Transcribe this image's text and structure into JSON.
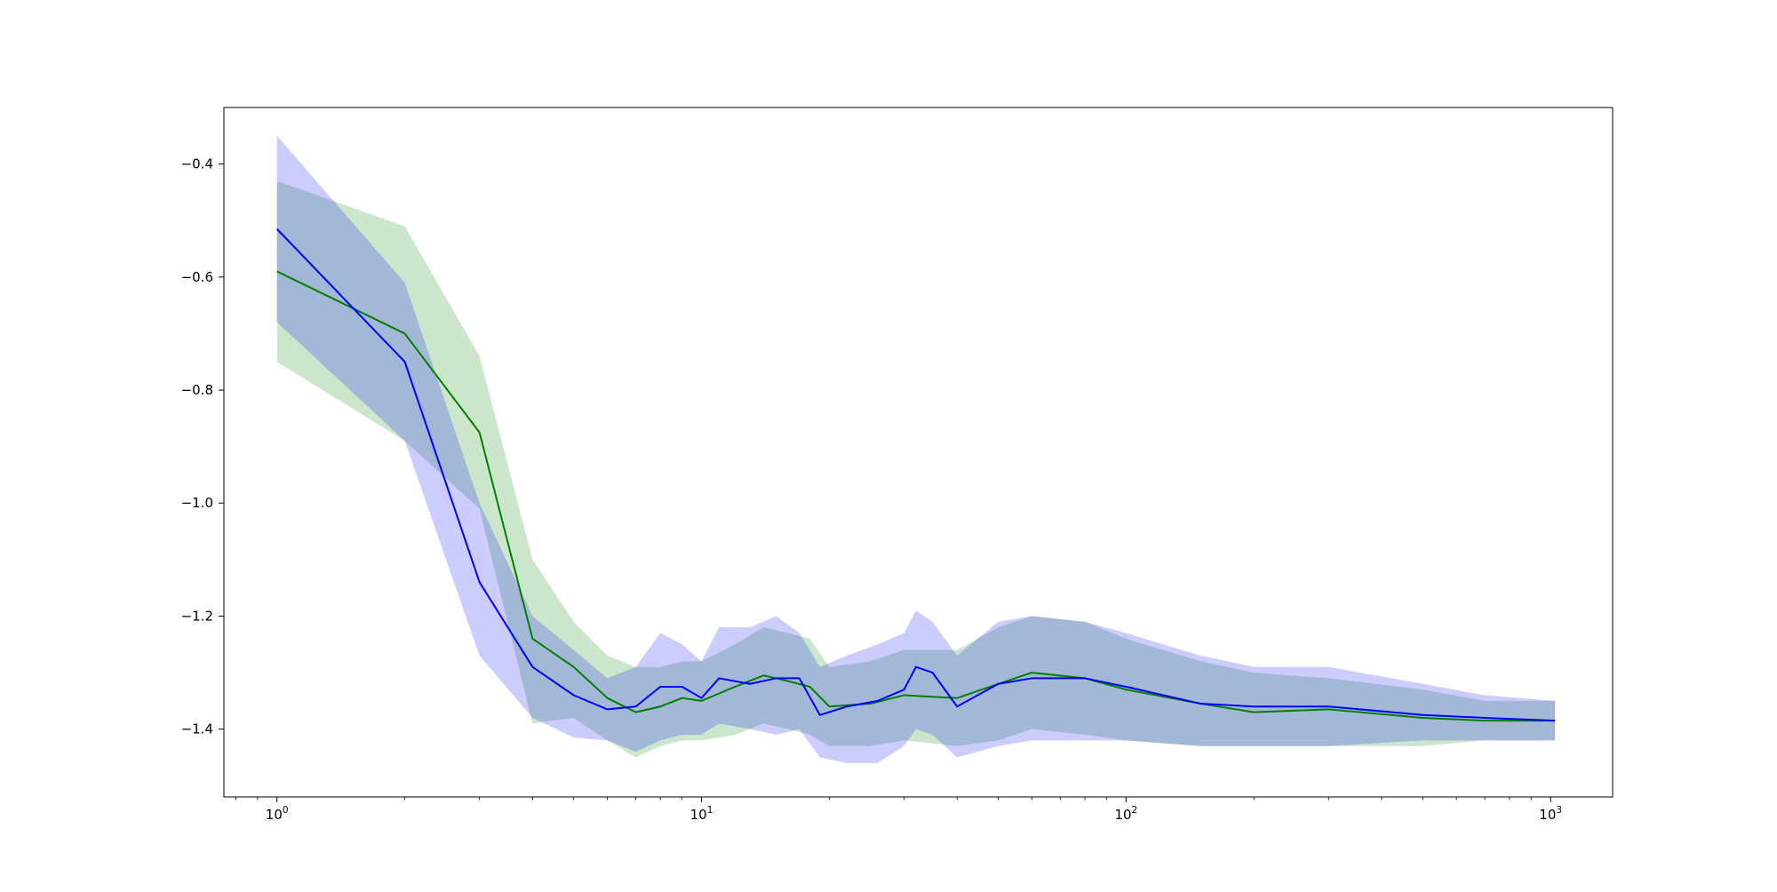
{
  "chart_data": {
    "type": "line",
    "title": "",
    "xlabel": "",
    "ylabel": "",
    "xscale": "log",
    "xlim": [
      0.75,
      1400
    ],
    "ylim": [
      -1.52,
      -0.3
    ],
    "grid": false,
    "legend": "none",
    "x_ticks": [
      {
        "value": 1,
        "base": "10",
        "exp": "0"
      },
      {
        "value": 10,
        "base": "10",
        "exp": "1"
      },
      {
        "value": 100,
        "base": "10",
        "exp": "2"
      },
      {
        "value": 1000,
        "base": "10",
        "exp": "3"
      }
    ],
    "y_ticks": [
      {
        "value": -1.4,
        "label": "−1.4"
      },
      {
        "value": -1.2,
        "label": "−1.2"
      },
      {
        "value": -1.0,
        "label": "−1.0"
      },
      {
        "value": -0.8,
        "label": "−0.8"
      },
      {
        "value": -0.6,
        "label": "−0.6"
      },
      {
        "value": -0.4,
        "label": "−0.4"
      }
    ],
    "series": [
      {
        "color": "#008000",
        "band_color": "#008000",
        "band_opacity": 0.2,
        "points": [
          {
            "x": 1,
            "y": -0.59,
            "lo": -0.75,
            "hi": -0.43
          },
          {
            "x": 2,
            "y": -0.7,
            "lo": -0.89,
            "hi": -0.51
          },
          {
            "x": 3,
            "y": -0.875,
            "lo": -1.01,
            "hi": -0.74
          },
          {
            "x": 4,
            "y": -1.24,
            "lo": -1.39,
            "hi": -1.1
          },
          {
            "x": 5,
            "y": -1.29,
            "lo": -1.38,
            "hi": -1.21
          },
          {
            "x": 6,
            "y": -1.345,
            "lo": -1.42,
            "hi": -1.27
          },
          {
            "x": 7,
            "y": -1.37,
            "lo": -1.45,
            "hi": -1.29
          },
          {
            "x": 8,
            "y": -1.36,
            "lo": -1.43,
            "hi": -1.29
          },
          {
            "x": 9,
            "y": -1.345,
            "lo": -1.42,
            "hi": -1.28
          },
          {
            "x": 10,
            "y": -1.35,
            "lo": -1.42,
            "hi": -1.28
          },
          {
            "x": 12,
            "y": -1.325,
            "lo": -1.41,
            "hi": -1.25
          },
          {
            "x": 14,
            "y": -1.305,
            "lo": -1.39,
            "hi": -1.22
          },
          {
            "x": 16,
            "y": -1.315,
            "lo": -1.4,
            "hi": -1.23
          },
          {
            "x": 18,
            "y": -1.325,
            "lo": -1.41,
            "hi": -1.24
          },
          {
            "x": 20,
            "y": -1.36,
            "lo": -1.43,
            "hi": -1.29
          },
          {
            "x": 25,
            "y": -1.355,
            "lo": -1.43,
            "hi": -1.28
          },
          {
            "x": 30,
            "y": -1.34,
            "lo": -1.42,
            "hi": -1.26
          },
          {
            "x": 40,
            "y": -1.345,
            "lo": -1.43,
            "hi": -1.26
          },
          {
            "x": 50,
            "y": -1.32,
            "lo": -1.42,
            "hi": -1.22
          },
          {
            "x": 60,
            "y": -1.3,
            "lo": -1.4,
            "hi": -1.2
          },
          {
            "x": 80,
            "y": -1.31,
            "lo": -1.41,
            "hi": -1.21
          },
          {
            "x": 100,
            "y": -1.33,
            "lo": -1.42,
            "hi": -1.24
          },
          {
            "x": 150,
            "y": -1.355,
            "lo": -1.43,
            "hi": -1.28
          },
          {
            "x": 200,
            "y": -1.37,
            "lo": -1.43,
            "hi": -1.3
          },
          {
            "x": 300,
            "y": -1.365,
            "lo": -1.43,
            "hi": -1.31
          },
          {
            "x": 500,
            "y": -1.38,
            "lo": -1.43,
            "hi": -1.33
          },
          {
            "x": 700,
            "y": -1.385,
            "lo": -1.42,
            "hi": -1.35
          },
          {
            "x": 1024,
            "y": -1.385,
            "lo": -1.42,
            "hi": -1.35
          }
        ]
      },
      {
        "color": "#0000ff",
        "band_color": "#0000ff",
        "band_opacity": 0.2,
        "points": [
          {
            "x": 1,
            "y": -0.515,
            "lo": -0.68,
            "hi": -0.35
          },
          {
            "x": 2,
            "y": -0.75,
            "lo": -0.89,
            "hi": -0.61
          },
          {
            "x": 3,
            "y": -1.14,
            "lo": -1.27,
            "hi": -1.0
          },
          {
            "x": 4,
            "y": -1.29,
            "lo": -1.38,
            "hi": -1.2
          },
          {
            "x": 5,
            "y": -1.34,
            "lo": -1.415,
            "hi": -1.26
          },
          {
            "x": 6,
            "y": -1.365,
            "lo": -1.42,
            "hi": -1.31
          },
          {
            "x": 7,
            "y": -1.36,
            "lo": -1.44,
            "hi": -1.29
          },
          {
            "x": 8,
            "y": -1.325,
            "lo": -1.42,
            "hi": -1.23
          },
          {
            "x": 9,
            "y": -1.325,
            "lo": -1.41,
            "hi": -1.25
          },
          {
            "x": 10,
            "y": -1.345,
            "lo": -1.41,
            "hi": -1.28
          },
          {
            "x": 11,
            "y": -1.31,
            "lo": -1.39,
            "hi": -1.22
          },
          {
            "x": 13,
            "y": -1.32,
            "lo": -1.4,
            "hi": -1.22
          },
          {
            "x": 15,
            "y": -1.31,
            "lo": -1.41,
            "hi": -1.2
          },
          {
            "x": 17,
            "y": -1.31,
            "lo": -1.4,
            "hi": -1.23
          },
          {
            "x": 19,
            "y": -1.375,
            "lo": -1.45,
            "hi": -1.29
          },
          {
            "x": 22,
            "y": -1.36,
            "lo": -1.46,
            "hi": -1.27
          },
          {
            "x": 26,
            "y": -1.35,
            "lo": -1.46,
            "hi": -1.25
          },
          {
            "x": 30,
            "y": -1.33,
            "lo": -1.43,
            "hi": -1.23
          },
          {
            "x": 32,
            "y": -1.29,
            "lo": -1.4,
            "hi": -1.19
          },
          {
            "x": 35,
            "y": -1.3,
            "lo": -1.41,
            "hi": -1.21
          },
          {
            "x": 40,
            "y": -1.36,
            "lo": -1.45,
            "hi": -1.27
          },
          {
            "x": 50,
            "y": -1.32,
            "lo": -1.43,
            "hi": -1.21
          },
          {
            "x": 60,
            "y": -1.31,
            "lo": -1.42,
            "hi": -1.2
          },
          {
            "x": 80,
            "y": -1.31,
            "lo": -1.42,
            "hi": -1.21
          },
          {
            "x": 100,
            "y": -1.325,
            "lo": -1.42,
            "hi": -1.23
          },
          {
            "x": 150,
            "y": -1.355,
            "lo": -1.43,
            "hi": -1.27
          },
          {
            "x": 200,
            "y": -1.36,
            "lo": -1.43,
            "hi": -1.29
          },
          {
            "x": 300,
            "y": -1.36,
            "lo": -1.43,
            "hi": -1.29
          },
          {
            "x": 500,
            "y": -1.375,
            "lo": -1.42,
            "hi": -1.32
          },
          {
            "x": 700,
            "y": -1.38,
            "lo": -1.42,
            "hi": -1.34
          },
          {
            "x": 1024,
            "y": -1.385,
            "lo": -1.42,
            "hi": -1.35
          }
        ]
      }
    ]
  }
}
